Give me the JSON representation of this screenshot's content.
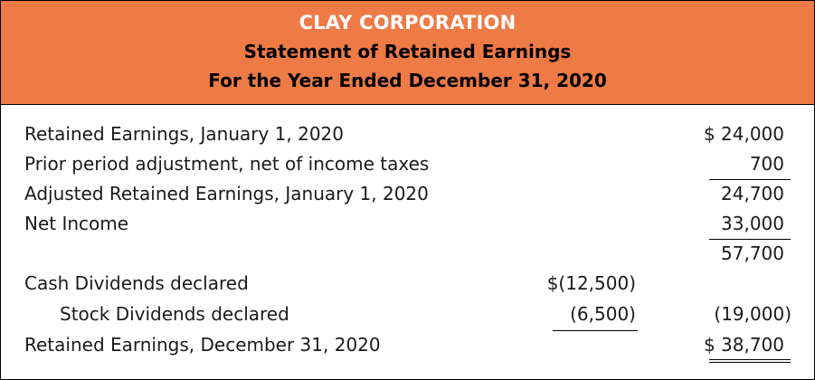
{
  "header": {
    "company": "CLAY CORPORATION",
    "statement": "Statement of Retained Earnings",
    "period": "For the Year Ended December 31, 2020",
    "background_color": "#ee7a45"
  },
  "rows": [
    {
      "label": "Retained Earnings, January 1, 2020",
      "col1": "",
      "col2": "$ 24,000"
    },
    {
      "label": "Prior period adjustment, net of income taxes",
      "col1": "",
      "col2": "700"
    },
    {
      "label": "Adjusted Retained Earnings, January 1, 2020",
      "col1": "",
      "col2": "24,700"
    },
    {
      "label": "Net Income",
      "col1": "",
      "col2": "33,000"
    },
    {
      "label": "",
      "col1": "",
      "col2": "57,700"
    },
    {
      "label": "Cash Dividends declared",
      "col1": "$(12,500)",
      "col2": ""
    },
    {
      "label": "Stock Dividends declared",
      "col1": "(6,500)",
      "col2": "(19,000)"
    },
    {
      "label": "Retained Earnings, December 31, 2020",
      "col1": "",
      "col2": "$ 38,700"
    }
  ]
}
